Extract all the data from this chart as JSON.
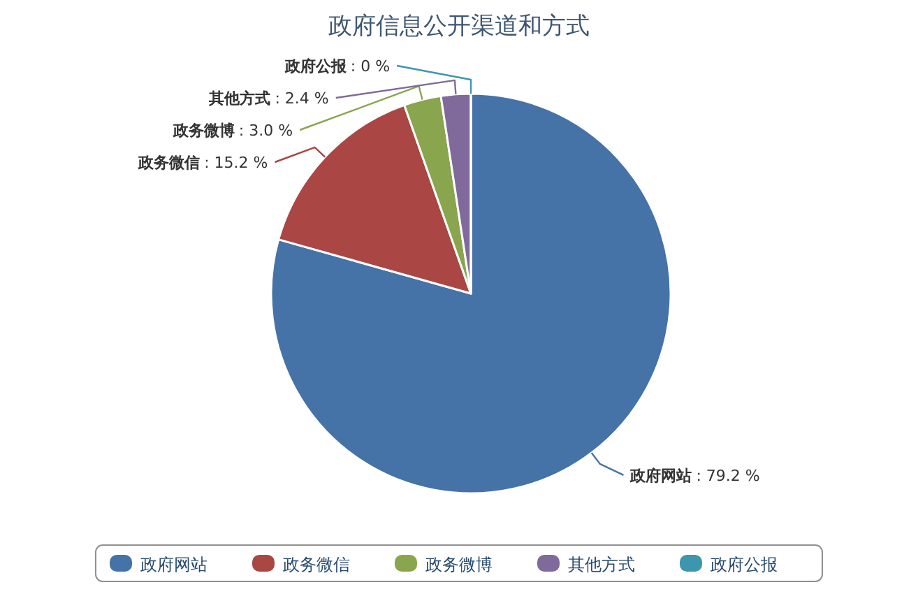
{
  "chart_data": {
    "type": "pie",
    "title": "政府信息公开渠道和方式",
    "categories": [
      "政府网站",
      "政务微信",
      "政务微博",
      "其他方式",
      "政府公报"
    ],
    "values": [
      79.2,
      15.2,
      3.0,
      2.4,
      0
    ],
    "value_labels": [
      ": 79.2 %",
      ": 15.2 %",
      ": 3.0 %",
      ": 2.4 %",
      ": 0 %"
    ],
    "colors": [
      "#4572a7",
      "#aa4643",
      "#89a54e",
      "#80699b",
      "#3d96ae"
    ],
    "legend": "bottom"
  }
}
